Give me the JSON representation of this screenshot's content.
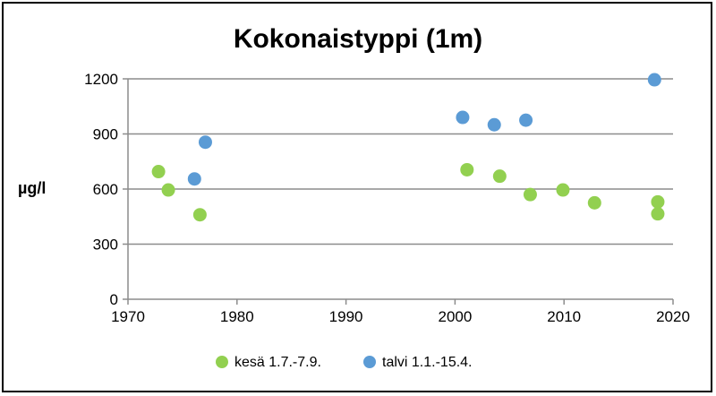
{
  "chart_data": {
    "type": "scatter",
    "title": "Kokonaistyppi (1m)",
    "ylabel": "µg/l",
    "xlabel": "",
    "xlim": [
      1970,
      2020
    ],
    "ylim": [
      0,
      1200
    ],
    "xticks": [
      "1970",
      "1980",
      "1990",
      "2000",
      "2010",
      "2020"
    ],
    "yticks": [
      "0",
      "300",
      "600",
      "900",
      "1200"
    ],
    "grid": "horizontal",
    "legend_position": "bottom",
    "series": [
      {
        "name": "kesä 1.7.-7.9.",
        "color": "#92d050",
        "points": [
          {
            "x": 1972.8,
            "y": 695
          },
          {
            "x": 1973.7,
            "y": 595
          },
          {
            "x": 1976.6,
            "y": 460
          },
          {
            "x": 2001.1,
            "y": 705
          },
          {
            "x": 2004.1,
            "y": 670
          },
          {
            "x": 2006.9,
            "y": 570
          },
          {
            "x": 2009.9,
            "y": 595
          },
          {
            "x": 2012.8,
            "y": 525
          },
          {
            "x": 2018.6,
            "y": 530
          },
          {
            "x": 2018.6,
            "y": 465
          }
        ]
      },
      {
        "name": "talvi 1.1.-15.4.",
        "color": "#5b9bd5",
        "points": [
          {
            "x": 1976.1,
            "y": 655
          },
          {
            "x": 1977.1,
            "y": 855
          },
          {
            "x": 2000.7,
            "y": 990
          },
          {
            "x": 2003.6,
            "y": 950
          },
          {
            "x": 2006.5,
            "y": 975
          },
          {
            "x": 2018.3,
            "y": 1195
          }
        ]
      }
    ]
  }
}
